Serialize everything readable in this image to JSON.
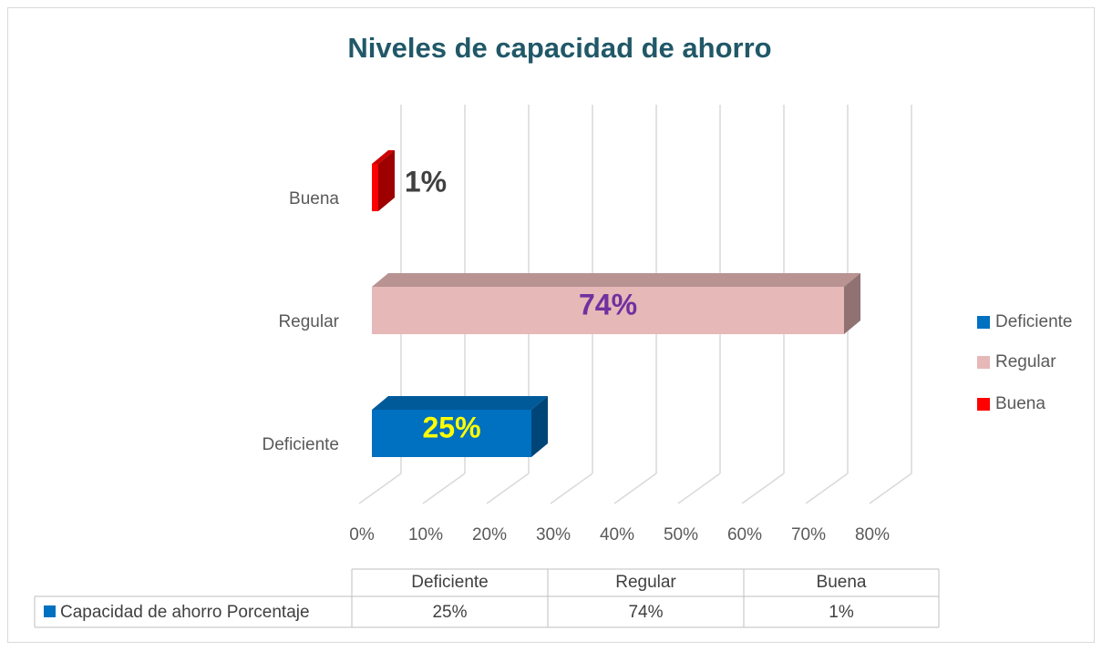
{
  "chart_data": {
    "type": "bar3d_horizontal",
    "title": "Niveles de capacidad de ahorro",
    "categories": [
      "Deficiente",
      "Regular",
      "Buena"
    ],
    "series": [
      {
        "name": "Capacidad de ahorro Porcentaje",
        "colors": [
          "#0070c0",
          "#e6b8b7",
          "#ff0000"
        ],
        "values": [
          25,
          74,
          1
        ],
        "value_labels": [
          "25%",
          "74%",
          "1%"
        ]
      }
    ],
    "xlim": [
      0,
      80
    ],
    "xticks": [
      {
        "value": 0,
        "label": "0%"
      },
      {
        "value": 10,
        "label": "10%"
      },
      {
        "value": 20,
        "label": "20%"
      },
      {
        "value": 30,
        "label": "30%"
      },
      {
        "value": 40,
        "label": "40%"
      },
      {
        "value": 50,
        "label": "50%"
      },
      {
        "value": 60,
        "label": "60%"
      },
      {
        "value": 70,
        "label": "70%"
      },
      {
        "value": 80,
        "label": "80%"
      }
    ],
    "grid": true,
    "legend": "right",
    "data_table": true
  }
}
